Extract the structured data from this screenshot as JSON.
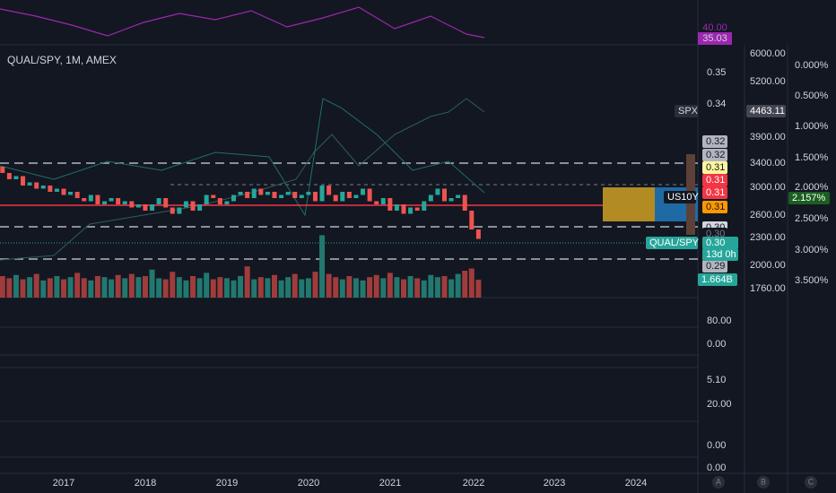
{
  "header": {
    "symbol": "QUAL/SPY, 1M, AMEX"
  },
  "top_panel": {
    "value": "35.03",
    "hidden": "40.00"
  },
  "price_axis": {
    "ylim": [
      0.2783,
      0.3574
    ],
    "yticks": [
      0.35,
      0.34
    ]
  },
  "price_labels": [
    "0.32",
    "0.32",
    "0.31",
    "0.31",
    "0.31",
    "0.31",
    "0.30",
    "0.30",
    "0.29"
  ],
  "qual_label": {
    "name": "QUAL/SPY",
    "value": "0.30",
    "countdown": "13d 0h",
    "volume": "1.664B"
  },
  "spx": {
    "name": "SPX",
    "value": "4463.11",
    "ticks": [
      "6000.00",
      "5200.00",
      "3900.00",
      "3400.00",
      "3000.00",
      "2600.00",
      "2300.00",
      "2000.00",
      "1760.00"
    ]
  },
  "us10y": {
    "name": "US10Y",
    "value": "2.157%",
    "ticks": [
      "0.000%",
      "0.500%",
      "1.000%",
      "1.500%",
      "2.000%",
      "2.500%",
      "3.000%",
      "3.500%"
    ]
  },
  "lower_panels": [
    "80.00",
    "0.00",
    "5.10",
    "20.00",
    "0.00",
    "0.00"
  ],
  "years": [
    "2017",
    "2018",
    "2019",
    "2020",
    "2021",
    "2022",
    "2023",
    "2024"
  ],
  "scale_buttons": [
    "A",
    "B",
    "C"
  ],
  "candles": {
    "first_open": 0.32,
    "closes": [
      0.318,
      0.316,
      0.317,
      0.314,
      0.315,
      0.313,
      0.314,
      0.312,
      0.313,
      0.311,
      0.312,
      0.31,
      0.309,
      0.311,
      0.308,
      0.309,
      0.31,
      0.308,
      0.309,
      0.307,
      0.308,
      0.306,
      0.308,
      0.31,
      0.307,
      0.305,
      0.307,
      0.309,
      0.306,
      0.308,
      0.311,
      0.31,
      0.308,
      0.309,
      0.311,
      0.312,
      0.31,
      0.313,
      0.311,
      0.312,
      0.31,
      0.311,
      0.312,
      0.31,
      0.311,
      0.312,
      0.309,
      0.314,
      0.311,
      0.309,
      0.312,
      0.31,
      0.311,
      0.313,
      0.309,
      0.308,
      0.31,
      0.306,
      0.308,
      0.305,
      0.307,
      0.306,
      0.309,
      0.311,
      0.313,
      0.309,
      0.31,
      0.311,
      0.306,
      0.3,
      0.297
    ],
    "volumes": [
      2.0,
      1.8,
      2.1,
      1.7,
      1.9,
      2.2,
      1.6,
      1.8,
      2.0,
      1.7,
      1.9,
      2.3,
      1.8,
      1.6,
      2.0,
      1.9,
      1.7,
      2.1,
      1.8,
      2.2,
      1.9,
      2.0,
      2.6,
      1.8,
      1.7,
      2.4,
      1.9,
      1.6,
      2.0,
      1.8,
      2.3,
      1.7,
      1.9,
      1.8,
      1.6,
      2.0,
      2.9,
      1.7,
      1.9,
      1.8,
      2.1,
      1.6,
      1.9,
      2.2,
      1.7,
      1.8,
      2.4,
      5.8,
      2.2,
      1.9,
      1.7,
      2.0,
      1.8,
      1.6,
      1.9,
      2.1,
      1.8,
      2.3,
      1.9,
      1.7,
      2.0,
      1.8,
      1.6,
      2.1,
      1.9,
      2.0,
      1.7,
      2.2,
      2.5,
      2.7,
      1.664
    ]
  }
}
